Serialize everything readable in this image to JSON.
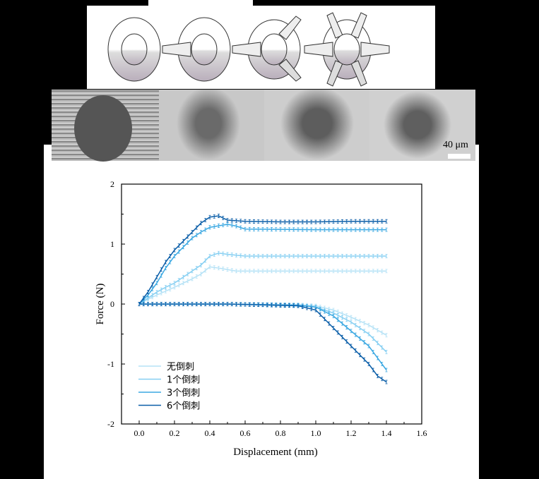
{
  "scale_bar_label": "40 μm",
  "panel_icons": [
    "no-barb-needle-icon",
    "one-barb-needle-icon",
    "three-barb-needle-icon",
    "six-barb-needle-icon"
  ],
  "chart_data": {
    "type": "line",
    "title": "",
    "xlabel": "Displacement (mm)",
    "ylabel": "Force (N)",
    "xlim": [
      -0.1,
      1.6
    ],
    "ylim": [
      -2,
      2
    ],
    "xticks": [
      "0.0",
      "0.2",
      "0.4",
      "0.6",
      "0.8",
      "1.0",
      "1.2",
      "1.4",
      "1.6"
    ],
    "yticks": [
      "2",
      "1",
      "0",
      "-1",
      "-2"
    ],
    "grid": false,
    "error_bars": true,
    "legend_position": "bottom-left",
    "series": [
      {
        "name": "无倒刺",
        "color": "#b5e2f6",
        "loading": [
          [
            0,
            0
          ],
          [
            0.05,
            0.08
          ],
          [
            0.1,
            0.15
          ],
          [
            0.2,
            0.28
          ],
          [
            0.3,
            0.42
          ],
          [
            0.35,
            0.5
          ],
          [
            0.4,
            0.62
          ],
          [
            0.45,
            0.6
          ],
          [
            0.55,
            0.55
          ],
          [
            0.8,
            0.55
          ],
          [
            1.0,
            0.55
          ],
          [
            1.2,
            0.55
          ],
          [
            1.4,
            0.55
          ]
        ],
        "unloading": [
          [
            0,
            0
          ],
          [
            0.5,
            0
          ],
          [
            0.9,
            -0.01
          ],
          [
            1.0,
            -0.03
          ],
          [
            1.1,
            -0.1
          ],
          [
            1.2,
            -0.22
          ],
          [
            1.3,
            -0.35
          ],
          [
            1.4,
            -0.52
          ]
        ]
      },
      {
        "name": "1个倒刺",
        "color": "#86cff2",
        "loading": [
          [
            0,
            0
          ],
          [
            0.05,
            0.1
          ],
          [
            0.1,
            0.2
          ],
          [
            0.15,
            0.28
          ],
          [
            0.2,
            0.35
          ],
          [
            0.25,
            0.45
          ],
          [
            0.3,
            0.55
          ],
          [
            0.35,
            0.65
          ],
          [
            0.4,
            0.8
          ],
          [
            0.45,
            0.85
          ],
          [
            0.5,
            0.83
          ],
          [
            0.6,
            0.8
          ],
          [
            1.0,
            0.8
          ],
          [
            1.4,
            0.8
          ]
        ],
        "unloading": [
          [
            0,
            0
          ],
          [
            0.5,
            0
          ],
          [
            0.9,
            -0.02
          ],
          [
            1.0,
            -0.05
          ],
          [
            1.1,
            -0.15
          ],
          [
            1.2,
            -0.3
          ],
          [
            1.3,
            -0.5
          ],
          [
            1.4,
            -0.8
          ]
        ]
      },
      {
        "name": "3个倒刺",
        "color": "#3ba8e2",
        "loading": [
          [
            0,
            0
          ],
          [
            0.05,
            0.15
          ],
          [
            0.1,
            0.35
          ],
          [
            0.15,
            0.6
          ],
          [
            0.2,
            0.8
          ],
          [
            0.25,
            0.95
          ],
          [
            0.3,
            1.1
          ],
          [
            0.35,
            1.2
          ],
          [
            0.4,
            1.28
          ],
          [
            0.5,
            1.33
          ],
          [
            0.55,
            1.3
          ],
          [
            0.6,
            1.25
          ],
          [
            1.0,
            1.24
          ],
          [
            1.4,
            1.24
          ]
        ],
        "unloading": [
          [
            0,
            0
          ],
          [
            0.5,
            0
          ],
          [
            0.9,
            -0.02
          ],
          [
            1.0,
            -0.05
          ],
          [
            1.1,
            -0.2
          ],
          [
            1.2,
            -0.45
          ],
          [
            1.3,
            -0.7
          ],
          [
            1.4,
            -1.1
          ]
        ]
      },
      {
        "name": "6个倒刺",
        "color": "#0b5ea8",
        "loading": [
          [
            0,
            0
          ],
          [
            0.05,
            0.2
          ],
          [
            0.1,
            0.45
          ],
          [
            0.15,
            0.7
          ],
          [
            0.2,
            0.9
          ],
          [
            0.25,
            1.05
          ],
          [
            0.3,
            1.2
          ],
          [
            0.35,
            1.35
          ],
          [
            0.4,
            1.45
          ],
          [
            0.45,
            1.47
          ],
          [
            0.5,
            1.4
          ],
          [
            0.6,
            1.38
          ],
          [
            0.8,
            1.37
          ],
          [
            1.0,
            1.37
          ],
          [
            1.2,
            1.38
          ],
          [
            1.4,
            1.38
          ]
        ],
        "unloading": [
          [
            0,
            0
          ],
          [
            0.5,
            0
          ],
          [
            0.9,
            -0.03
          ],
          [
            1.0,
            -0.1
          ],
          [
            1.1,
            -0.4
          ],
          [
            1.2,
            -0.7
          ],
          [
            1.3,
            -1.0
          ],
          [
            1.35,
            -1.2
          ],
          [
            1.4,
            -1.3
          ]
        ]
      }
    ]
  }
}
